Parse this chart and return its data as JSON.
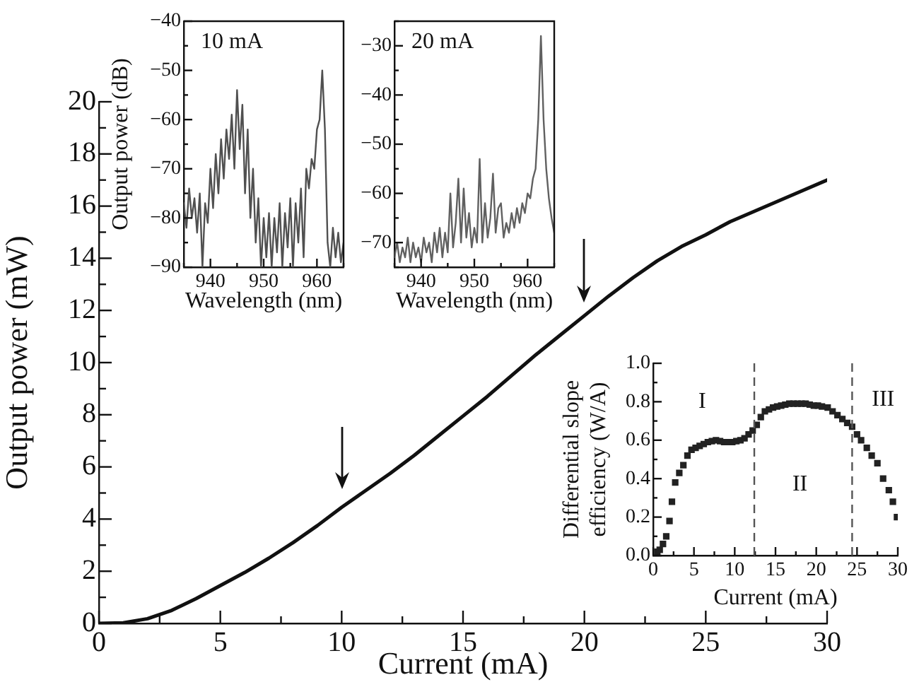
{
  "chart_data": [
    {
      "type": "line",
      "xlabel": "Current (mA)",
      "ylabel": "Output power (mW)",
      "marker": "none",
      "x": [
        0,
        1,
        2,
        3,
        4,
        5,
        6,
        7,
        8,
        9,
        10,
        11,
        12,
        13,
        14,
        15,
        16,
        17,
        18,
        19,
        20,
        21,
        22,
        23,
        24,
        25,
        26,
        27,
        28,
        29,
        30
      ],
      "series": [
        {
          "color": "#111111",
          "values": [
            0,
            0.02,
            0.18,
            0.5,
            0.95,
            1.45,
            1.95,
            2.5,
            3.1,
            3.75,
            4.45,
            5.1,
            5.75,
            6.45,
            7.2,
            7.95,
            8.7,
            9.5,
            10.3,
            11.05,
            11.8,
            12.55,
            13.25,
            13.9,
            14.45,
            14.9,
            15.4,
            15.8,
            16.2,
            16.6,
            17.0
          ]
        }
      ],
      "xlim": [
        0,
        30
      ],
      "ylim": [
        0,
        20
      ],
      "xticks": [
        0,
        {
          "value": 2.5,
          "label": null
        },
        5,
        {
          "value": 7.5,
          "label": null
        },
        10,
        {
          "value": 12.5,
          "label": null
        },
        15,
        {
          "value": 17.5,
          "label": null
        },
        20,
        {
          "value": 22.5,
          "label": null
        },
        25,
        {
          "value": 27.5,
          "label": null
        },
        30
      ],
      "yticks": [
        0,
        {
          "value": 1,
          "label": null
        },
        2,
        {
          "value": 3,
          "label": null
        },
        4,
        {
          "value": 5,
          "label": null
        },
        6,
        {
          "value": 7,
          "label": null
        },
        8,
        {
          "value": 9,
          "label": null
        },
        10,
        {
          "value": 11,
          "label": null
        },
        12,
        {
          "value": 13,
          "label": null
        },
        14,
        {
          "value": 15,
          "label": null
        },
        16,
        {
          "value": 17,
          "label": null
        },
        18,
        {
          "value": 19,
          "label": null
        },
        20
      ]
    },
    {
      "type": "line",
      "title": "10 mA",
      "xlabel": "Wavelength (nm)",
      "ylabel": "Output power (dB)",
      "marker": "none",
      "x": [
        935,
        935.5,
        936,
        936.5,
        937,
        937.5,
        938,
        938.5,
        939,
        939.5,
        940,
        940.5,
        941,
        941.5,
        942,
        942.5,
        943,
        943.5,
        944,
        944.5,
        945,
        945.5,
        946,
        946.5,
        947,
        947.5,
        948,
        948.5,
        949,
        949.5,
        950,
        950.5,
        951,
        951.5,
        952,
        952.5,
        953,
        953.5,
        954,
        954.5,
        955,
        955.5,
        956,
        956.5,
        957,
        957.5,
        958,
        958.5,
        959,
        959.5,
        960,
        960.5,
        961,
        961.5,
        962,
        962.5,
        963,
        963.5,
        964,
        964.5,
        965
      ],
      "series": [
        {
          "color": "#505050",
          "values": [
            -77,
            -82,
            -74,
            -80,
            -76,
            -83,
            -75,
            -90,
            -77,
            -81,
            -70,
            -78,
            -67,
            -75,
            -64,
            -72,
            -62,
            -68,
            -59,
            -70,
            -54,
            -66,
            -57,
            -75,
            -62,
            -80,
            -70,
            -85,
            -76,
            -90,
            -80,
            -88,
            -79,
            -90,
            -80,
            -87,
            -77,
            -90,
            -79,
            -86,
            -76,
            -90,
            -77,
            -85,
            -74,
            -88,
            -70,
            -74,
            -68,
            -70,
            -62,
            -60,
            -50,
            -62,
            -85,
            -90,
            -82,
            -88,
            -83,
            -89,
            -85
          ]
        }
      ],
      "xlim": [
        935,
        965
      ],
      "ylim": [
        -90,
        -40
      ],
      "xticks": [
        {
          "value": 935,
          "label": null
        },
        940,
        {
          "value": 945,
          "label": null
        },
        950,
        {
          "value": 955,
          "label": null
        },
        960,
        {
          "value": 965,
          "label": null
        }
      ],
      "yticks": [
        {
          "value": -90,
          "label": "−90"
        },
        {
          "value": -85,
          "label": null
        },
        {
          "value": -80,
          "label": "−80"
        },
        {
          "value": -75,
          "label": null
        },
        {
          "value": -70,
          "label": "−70"
        },
        {
          "value": -65,
          "label": null
        },
        {
          "value": -60,
          "label": "−60"
        },
        {
          "value": -55,
          "label": null
        },
        {
          "value": -50,
          "label": "−50"
        },
        {
          "value": -45,
          "label": null
        },
        {
          "value": -40,
          "label": "−40"
        }
      ]
    },
    {
      "type": "line",
      "title": "20 mA",
      "xlabel": "Wavelength (nm)",
      "marker": "none",
      "x": [
        935,
        935.5,
        936,
        936.5,
        937,
        937.5,
        938,
        938.5,
        939,
        939.5,
        940,
        940.5,
        941,
        941.5,
        942,
        942.5,
        943,
        943.5,
        944,
        944.5,
        945,
        945.5,
        946,
        946.5,
        947,
        947.5,
        948,
        948.5,
        949,
        949.5,
        950,
        950.5,
        951,
        951.5,
        952,
        952.5,
        953,
        953.5,
        954,
        954.5,
        955,
        955.5,
        956,
        956.5,
        957,
        957.5,
        958,
        958.5,
        959,
        959.5,
        960,
        960.5,
        961,
        961.5,
        962,
        962.5,
        963,
        963.5,
        964,
        964.5,
        965
      ],
      "series": [
        {
          "color": "#606060",
          "values": [
            -73,
            -70,
            -74,
            -71,
            -73,
            -69,
            -74,
            -70,
            -73,
            -71,
            -74,
            -69,
            -72,
            -70,
            -74,
            -68,
            -72,
            -67,
            -73,
            -68,
            -72,
            -60,
            -71,
            -66,
            -57,
            -70,
            -59,
            -69,
            -64,
            -71,
            -67,
            -70,
            -53,
            -70,
            -62,
            -69,
            -65,
            -56,
            -68,
            -63,
            -62,
            -69,
            -66,
            -68,
            -64,
            -67,
            -63,
            -66,
            -62,
            -64,
            -60,
            -61,
            -57,
            -55,
            -45,
            -28,
            -45,
            -55,
            -61,
            -65,
            -68
          ]
        }
      ],
      "xlim": [
        935,
        965
      ],
      "ylim": [
        -75,
        -25
      ],
      "xticks": [
        {
          "value": 935,
          "label": null
        },
        940,
        {
          "value": 945,
          "label": null
        },
        950,
        {
          "value": 955,
          "label": null
        },
        960,
        {
          "value": 965,
          "label": null
        }
      ],
      "yticks": [
        {
          "value": -75,
          "label": null
        },
        {
          "value": -70,
          "label": "−70"
        },
        {
          "value": -65,
          "label": null
        },
        {
          "value": -60,
          "label": "−60"
        },
        {
          "value": -55,
          "label": null
        },
        {
          "value": -50,
          "label": "−50"
        },
        {
          "value": -45,
          "label": null
        },
        {
          "value": -40,
          "label": "−40"
        },
        {
          "value": -35,
          "label": null
        },
        {
          "value": -30,
          "label": "−30"
        },
        {
          "value": -25,
          "label": null
        }
      ]
    },
    {
      "type": "scatter",
      "xlabel": "Current (mA)",
      "ylabel": "Differential slope efficiency (W/A)",
      "marker": "square",
      "x": [
        0.5,
        0.8,
        1.2,
        1.6,
        2,
        2.3,
        2.7,
        3.2,
        3.7,
        4.2,
        4.7,
        5.2,
        5.7,
        6.2,
        6.7,
        7.2,
        7.7,
        8.2,
        8.7,
        9.2,
        9.7,
        10.2,
        10.7,
        11.2,
        11.7,
        12.2,
        12.7,
        13.2,
        13.7,
        14.2,
        14.7,
        15.2,
        15.7,
        16.2,
        16.7,
        17.2,
        17.7,
        18.2,
        18.7,
        19.2,
        19.7,
        20.2,
        20.7,
        21.4,
        22,
        22.6,
        23.2,
        23.8,
        24.4,
        25,
        25.5,
        26.2,
        26.8,
        27.5,
        28.2,
        28.9,
        29.4,
        29.9
      ],
      "series": [
        {
          "color": "#222222",
          "values": [
            0.02,
            0.03,
            0.06,
            0.1,
            0.18,
            0.28,
            0.38,
            0.43,
            0.47,
            0.52,
            0.55,
            0.56,
            0.57,
            0.58,
            0.59,
            0.595,
            0.6,
            0.595,
            0.59,
            0.59,
            0.59,
            0.595,
            0.6,
            0.61,
            0.63,
            0.65,
            0.68,
            0.72,
            0.75,
            0.76,
            0.77,
            0.775,
            0.78,
            0.785,
            0.79,
            0.79,
            0.79,
            0.79,
            0.79,
            0.785,
            0.78,
            0.78,
            0.775,
            0.77,
            0.75,
            0.73,
            0.71,
            0.69,
            0.67,
            0.63,
            0.6,
            0.56,
            0.52,
            0.48,
            0.4,
            0.34,
            0.28,
            0.2
          ]
        }
      ],
      "xlim": [
        0,
        30
      ],
      "ylim": [
        0,
        1
      ],
      "xticks": [
        0,
        {
          "value": 2.5,
          "label": null
        },
        5,
        {
          "value": 7.5,
          "label": null
        },
        10,
        {
          "value": 12.5,
          "label": null
        },
        15,
        {
          "value": 17.5,
          "label": null
        },
        20,
        {
          "value": 22.5,
          "label": null
        },
        25,
        {
          "value": 27.5,
          "label": null
        },
        30
      ],
      "yticks": [
        {
          "value": 0,
          "label": "0.0"
        },
        {
          "value": 0.1,
          "label": null
        },
        {
          "value": 0.2,
          "label": "0.2"
        },
        {
          "value": 0.3,
          "label": null
        },
        {
          "value": 0.4,
          "label": "0.4"
        },
        {
          "value": 0.5,
          "label": null
        },
        {
          "value": 0.6,
          "label": "0.6"
        },
        {
          "value": 0.7,
          "label": null
        },
        {
          "value": 0.8,
          "label": "0.8"
        },
        {
          "value": 0.9,
          "label": null
        },
        {
          "value": 1,
          "label": "1.0"
        }
      ],
      "ref_lines": [
        {
          "axis": "x",
          "value": 12.4,
          "line_style": "dashed",
          "color": "#555555"
        },
        {
          "axis": "x",
          "value": 24.4,
          "line_style": "dashed",
          "color": "#555555"
        }
      ],
      "annotations": [
        "I",
        "II",
        "III"
      ]
    }
  ]
}
